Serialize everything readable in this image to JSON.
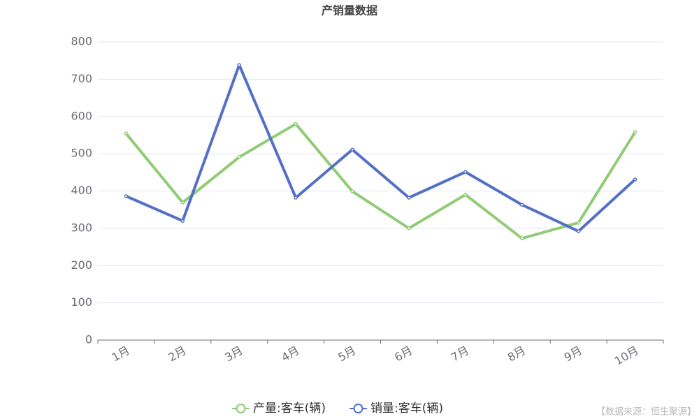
{
  "chart_data": {
    "type": "line",
    "title": "产销量数据",
    "categories": [
      "1月",
      "2月",
      "3月",
      "4月",
      "5月",
      "6月",
      "7月",
      "8月",
      "9月",
      "10月"
    ],
    "series": [
      {
        "name": "产量:客车(辆)",
        "color": "#91cc75",
        "values": [
          554,
          369,
          491,
          580,
          399,
          300,
          390,
          273,
          315,
          558
        ]
      },
      {
        "name": "销量:客车(辆)",
        "color": "#5470c6",
        "values": [
          386,
          320,
          738,
          382,
          511,
          382,
          451,
          363,
          292,
          431
        ]
      }
    ],
    "ylim": [
      0,
      800
    ],
    "yticks": [
      0,
      100,
      200,
      300,
      400,
      500,
      600,
      700,
      800
    ],
    "grid": true,
    "legend": "bottom",
    "source": "【数据来源：恒生聚源】"
  }
}
